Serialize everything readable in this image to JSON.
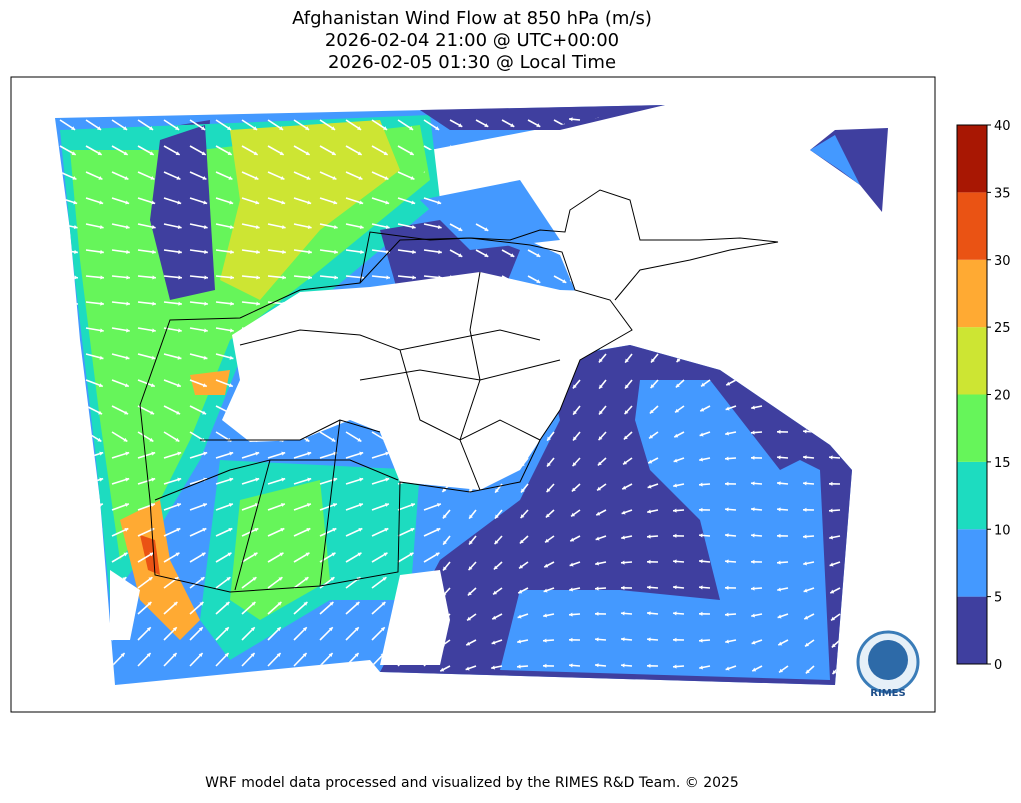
{
  "title": [
    "Afghanistan Wind Flow at 850 hPa (m/s)",
    "2026-02-04 21:00 @ UTC+00:00",
    "2026-02-05 01:30 @ Local Time"
  ],
  "colorbar": {
    "ticks": [
      0,
      5,
      10,
      15,
      20,
      25,
      30,
      35,
      40
    ],
    "colors": [
      "#3f3f9f",
      "#4499ff",
      "#1ddcc0",
      "#66f55a",
      "#cde533",
      "#ffaa33",
      "#ea5314",
      "#a81703"
    ]
  },
  "logo": "RIMES",
  "footer": "WRF model data processed and visualized by the RIMES R&D Team. © 2025"
}
